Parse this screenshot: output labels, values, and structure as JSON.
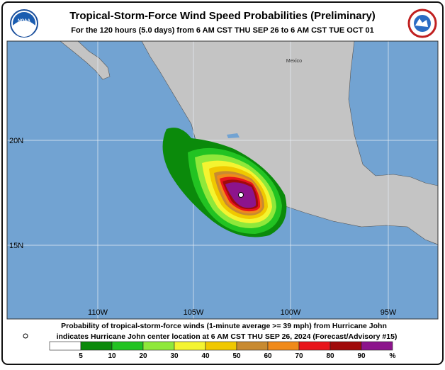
{
  "header": {
    "title": "Tropical-Storm-Force Wind Speed Probabilities (Preliminary)",
    "subtitle": "For the 120 hours (5.0 days) from 6 AM CST THU SEP 26 to 6 AM CST TUE OCT 01",
    "noaa_logo_text": "NOAA"
  },
  "map": {
    "place_label": "Mexico",
    "lat_labels": [
      "20N",
      "15N"
    ],
    "lon_labels": [
      "110W",
      "105W",
      "100W",
      "95W"
    ]
  },
  "footer": {
    "caption_line1": "Probability of tropical-storm-force winds (1-minute average >= 39 mph) from Hurricane John",
    "caption_line2": "indicates Hurricane John center location at 6 AM CST THU SEP 26, 2024 (Forecast/Advisory #15)"
  },
  "legend": {
    "labels": [
      "5",
      "10",
      "20",
      "30",
      "40",
      "50",
      "60",
      "70",
      "80",
      "90",
      "%"
    ],
    "colors": [
      "#ffffff",
      "#0b8a0b",
      "#22c322",
      "#8fe83a",
      "#f4f430",
      "#f0c800",
      "#c88a30",
      "#f08a1a",
      "#e8141a",
      "#a00a0a",
      "#8c148c"
    ]
  }
}
